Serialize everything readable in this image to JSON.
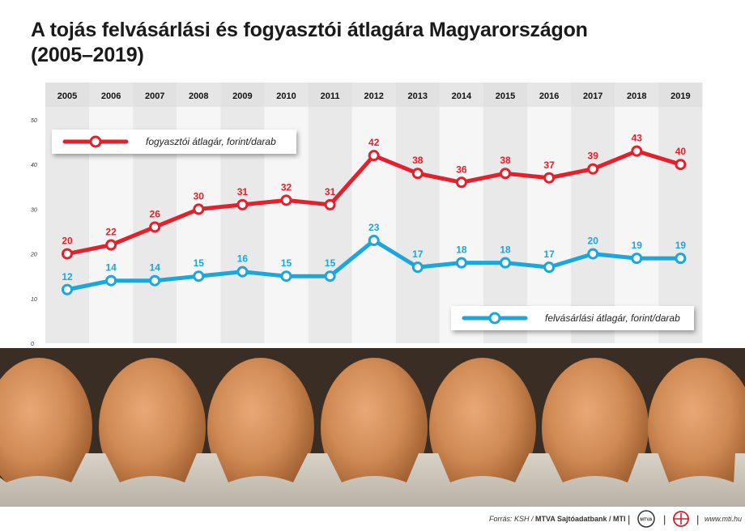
{
  "title_line1": "A tojás felvásárlási és fogyasztói átlagára Magyarországon",
  "title_line2": "(2005–2019)",
  "chart_data": {
    "type": "line",
    "x": [
      2005,
      2006,
      2007,
      2008,
      2009,
      2010,
      2011,
      2012,
      2013,
      2014,
      2015,
      2016,
      2017,
      2018,
      2019
    ],
    "ylim": [
      0,
      50
    ],
    "yticks": [
      0,
      10,
      20,
      30,
      40,
      50
    ],
    "grid": "vertical alternating bands",
    "series": [
      {
        "name": "fogyasztói átlagár, forint/darab",
        "color": "#e3202b",
        "values": [
          20,
          22,
          26,
          30,
          31,
          32,
          31,
          42,
          38,
          36,
          38,
          37,
          39,
          43,
          40
        ]
      },
      {
        "name": "felvásárlási átlagár, forint/darab",
        "color": "#1ba6dc",
        "values": [
          12,
          14,
          14,
          15,
          16,
          15,
          15,
          23,
          17,
          18,
          18,
          17,
          20,
          19,
          19
        ]
      }
    ]
  },
  "footer": {
    "source_prefix": "Forrás: KSH / ",
    "source_bold": "MTVA Sajtóadatbank / MTI",
    "sep1": "|",
    "logo1": "MTVA",
    "sep2": "|",
    "sep3": "|",
    "url": "www.mti.hu"
  }
}
